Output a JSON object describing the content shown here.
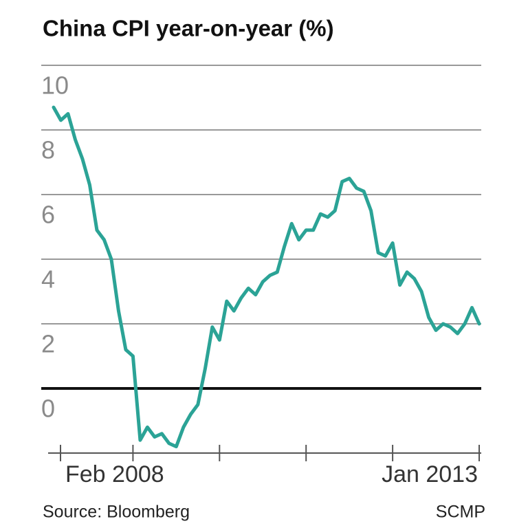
{
  "chart_data": {
    "type": "line",
    "title": "China CPI year-on-year (%)",
    "categories": [
      "Feb 2008",
      null,
      null,
      null,
      null,
      null,
      null,
      null,
      null,
      null,
      null,
      null,
      null,
      null,
      null,
      null,
      null,
      null,
      null,
      null,
      null,
      null,
      null,
      null,
      null,
      null,
      null,
      null,
      null,
      null,
      null,
      null,
      null,
      null,
      null,
      null,
      null,
      null,
      null,
      null,
      null,
      null,
      null,
      null,
      null,
      null,
      null,
      null,
      null,
      null,
      null,
      null,
      null,
      null,
      null,
      null,
      null,
      null,
      null,
      "Jan 2013"
    ],
    "series": [
      {
        "name": "CPI",
        "color": "#2ba396",
        "values": [
          8.7,
          8.3,
          8.5,
          7.7,
          7.1,
          6.3,
          4.9,
          4.6,
          4.0,
          2.4,
          1.2,
          1.0,
          -1.6,
          -1.2,
          -1.5,
          -1.4,
          -1.7,
          -1.8,
          -1.2,
          -0.8,
          -0.5,
          0.6,
          1.9,
          1.5,
          2.7,
          2.4,
          2.8,
          3.1,
          2.9,
          3.3,
          3.5,
          3.6,
          4.4,
          5.1,
          4.6,
          4.9,
          4.9,
          5.4,
          5.3,
          5.5,
          6.4,
          6.5,
          6.2,
          6.1,
          5.5,
          4.2,
          4.1,
          4.5,
          3.2,
          3.6,
          3.4,
          3.0,
          2.2,
          1.8,
          2.0,
          1.9,
          1.7,
          2.0,
          2.5,
          2.0
        ]
      }
    ],
    "ylim": [
      -2,
      10
    ],
    "yticks": [
      0,
      2,
      4,
      6,
      8,
      10
    ],
    "grid": true,
    "source": "Source: Bloomberg",
    "publisher": "SCMP"
  }
}
